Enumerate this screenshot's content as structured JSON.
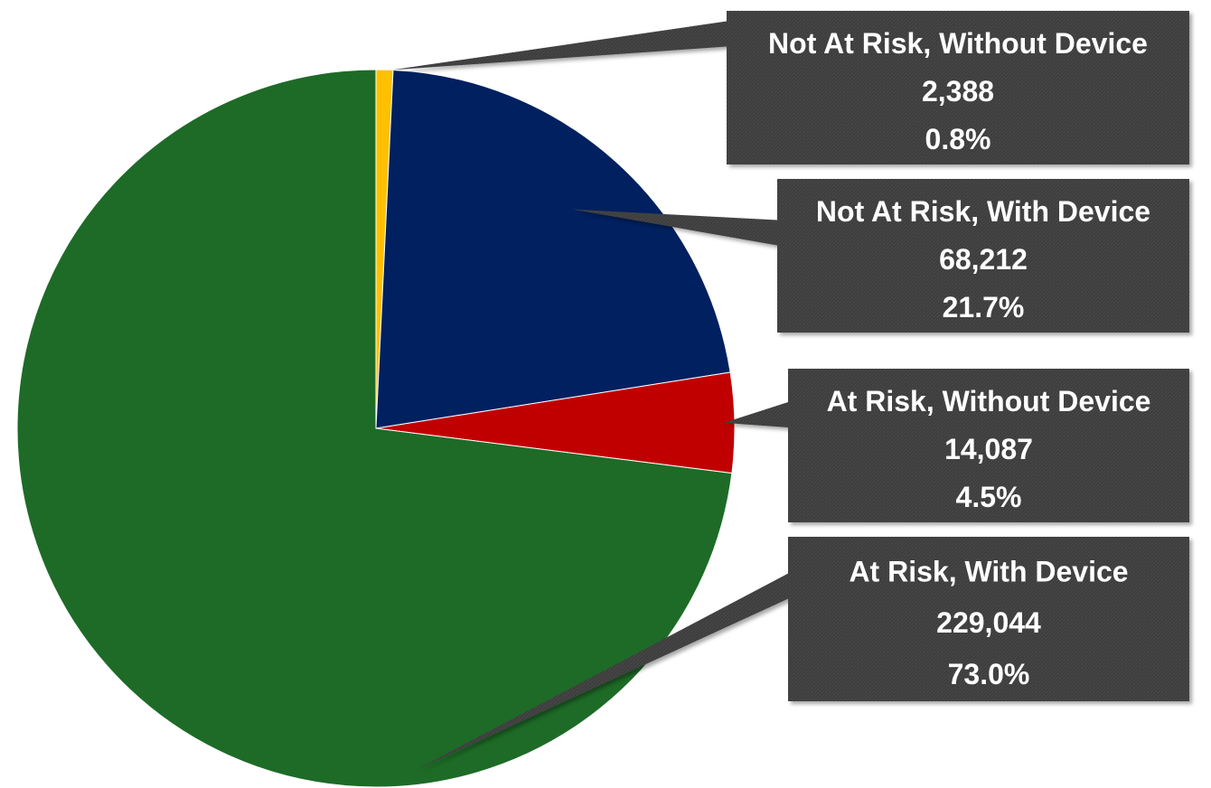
{
  "chart_data": {
    "type": "pie",
    "title": "",
    "slices": [
      {
        "label": "Not At Risk, Without Device",
        "value": 2388,
        "value_text": "2,388",
        "percent": 0.8,
        "percent_text": "0.8%",
        "color": "#ffc000"
      },
      {
        "label": "Not At Risk, With Device",
        "value": 68212,
        "value_text": "68,212",
        "percent": 21.7,
        "percent_text": "21.7%",
        "color": "#002060"
      },
      {
        "label": "At Risk, Without Device",
        "value": 14087,
        "value_text": "14,087",
        "percent": 4.5,
        "percent_text": "4.5%",
        "color": "#c00000"
      },
      {
        "label": "At Risk, With Device",
        "value": 229044,
        "value_text": "229,044",
        "percent": 73.0,
        "percent_text": "73.0%",
        "color": "#1d6b27"
      }
    ],
    "start_angle": "12 o'clock",
    "direction": "clockwise",
    "legend": "none",
    "data_labels": "callouts on right"
  }
}
